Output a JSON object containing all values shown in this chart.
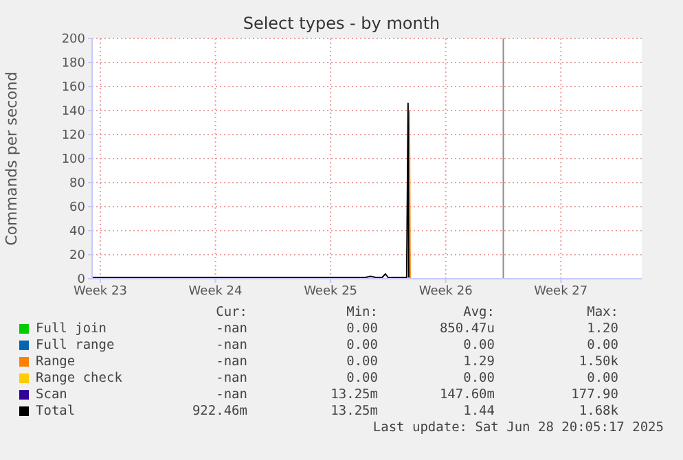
{
  "chart_data": {
    "type": "line",
    "title": "Select types - by month",
    "ylabel": "Commands per second",
    "xlim": [
      "2025-06-01T12:00",
      "2025-07-04T22:00"
    ],
    "xticks": [
      {
        "value": "2025-06-02",
        "label": "Week 23"
      },
      {
        "value": "2025-06-09",
        "label": "Week 24"
      },
      {
        "value": "2025-06-16",
        "label": "Week 25"
      },
      {
        "value": "2025-06-23",
        "label": "Week 26"
      },
      {
        "value": "2025-06-30",
        "label": "Week 27"
      }
    ],
    "ylim": [
      0,
      200
    ],
    "yticks": [
      0,
      20,
      40,
      60,
      80,
      100,
      120,
      140,
      160,
      180,
      200
    ],
    "grid": true,
    "legend": "bottom",
    "ref_lines": [
      {
        "axis": "x",
        "value": "2025-06-26T12:00",
        "color": "#8c8c8c"
      }
    ],
    "series": [
      {
        "name": "Full join",
        "color": "#00cc00"
      },
      {
        "name": "Full range",
        "color": "#0066b3"
      },
      {
        "name": "Range",
        "color": "#ff8000",
        "x": [
          "2025-06-20T19:00",
          "2025-06-20T20:00"
        ],
        "values": [
          140,
          0
        ]
      },
      {
        "name": "Range check",
        "color": "#ffcc00"
      },
      {
        "name": "Scan",
        "color": "#330099"
      },
      {
        "name": "Total",
        "color": "#000000",
        "x": [
          "2025-06-01T12:00",
          "2025-06-18T02:00",
          "2025-06-18T10:00",
          "2025-06-18T19:00",
          "2025-06-19T03:00",
          "2025-06-19T08:00",
          "2025-06-19T12:00",
          "2025-06-20T15:00",
          "2025-06-20T17:00",
          "2025-06-20T18:00"
        ],
        "values": [
          1,
          1,
          2,
          1,
          1,
          4,
          1,
          1,
          146,
          1
        ]
      }
    ],
    "annotations": [
      "Cur:",
      "Min:",
      "Avg:",
      "Max:",
      "-nan",
      "0.00",
      "850.47u",
      "1.20",
      "-nan",
      "0.00",
      "0.00",
      "0.00",
      "-nan",
      "0.00",
      "1.29",
      "1.50k",
      "-nan",
      "0.00",
      "0.00",
      "0.00",
      "-nan",
      "13.25m",
      "147.60m",
      "177.90",
      "922.46m",
      "13.25m",
      "1.44",
      "1.68k",
      "Last update: Sat Jun 28 20:05:17 2025"
    ]
  }
}
